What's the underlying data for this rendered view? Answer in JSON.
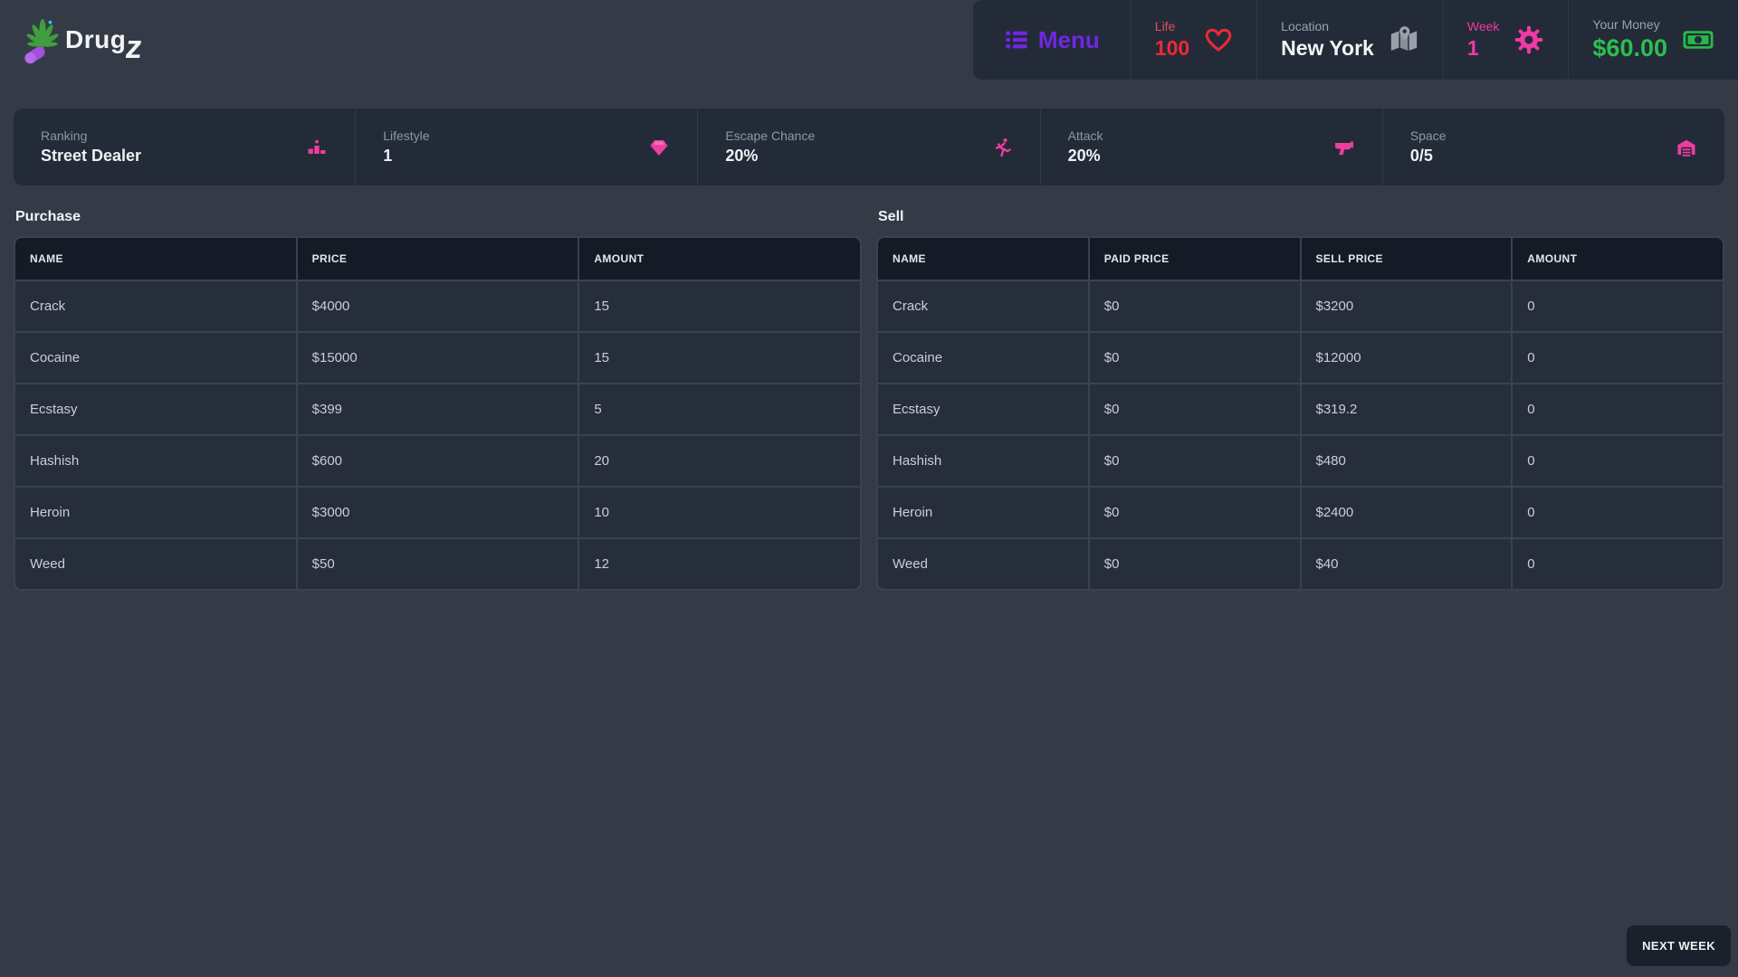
{
  "app": {
    "name_prefix": "Drug",
    "name_suffix": "z",
    "logo_icon": "cannabis-leaf-and-pill-icon"
  },
  "header": {
    "menu": {
      "label": "Menu",
      "icon": "list-menu-icon"
    },
    "life": {
      "label": "Life",
      "value": "100",
      "icon": "heart-icon"
    },
    "location": {
      "label": "Location",
      "value": "New York",
      "icon": "map-location-icon"
    },
    "week": {
      "label": "Week",
      "value": "1",
      "icon": "gear-icon"
    },
    "money": {
      "label": "Your Money",
      "value": "$60.00",
      "icon": "money-bill-icon"
    }
  },
  "stats": [
    {
      "label": "Ranking",
      "value": "Street Dealer",
      "icon": "ranking-podium-icon"
    },
    {
      "label": "Lifestyle",
      "value": "1",
      "icon": "gem-icon"
    },
    {
      "label": "Escape Chance",
      "value": "20%",
      "icon": "person-running-icon"
    },
    {
      "label": "Attack",
      "value": "20%",
      "icon": "gun-icon"
    },
    {
      "label": "Space",
      "value": "0/5",
      "icon": "warehouse-icon"
    }
  ],
  "purchase": {
    "title": "Purchase",
    "columns": [
      "NAME",
      "PRICE",
      "AMOUNT"
    ],
    "rows": [
      [
        "Crack",
        "$4000",
        "15"
      ],
      [
        "Cocaine",
        "$15000",
        "15"
      ],
      [
        "Ecstasy",
        "$399",
        "5"
      ],
      [
        "Hashish",
        "$600",
        "20"
      ],
      [
        "Heroin",
        "$3000",
        "10"
      ],
      [
        "Weed",
        "$50",
        "12"
      ]
    ]
  },
  "sell": {
    "title": "Sell",
    "columns": [
      "NAME",
      "PAID PRICE",
      "SELL PRICE",
      "AMOUNT"
    ],
    "rows": [
      [
        "Crack",
        "$0",
        "$3200",
        "0"
      ],
      [
        "Cocaine",
        "$0",
        "$12000",
        "0"
      ],
      [
        "Ecstasy",
        "$0",
        "$319.2",
        "0"
      ],
      [
        "Hashish",
        "$0",
        "$480",
        "0"
      ],
      [
        "Heroin",
        "$0",
        "$2400",
        "0"
      ],
      [
        "Weed",
        "$0",
        "$40",
        "0"
      ]
    ]
  },
  "footer": {
    "next_week_label": "NEXT WEEK"
  },
  "colors": {
    "page_background": "#343b47",
    "panel_background": "#232b38",
    "table_header_background": "#151b26",
    "table_row_background": "#262e3b",
    "accent_purple": "#7126e3",
    "accent_red": "#ee2937",
    "accent_pink": "#ef3aa4",
    "accent_green": "#2cbf4f",
    "label_gray": "#99a1ad"
  }
}
